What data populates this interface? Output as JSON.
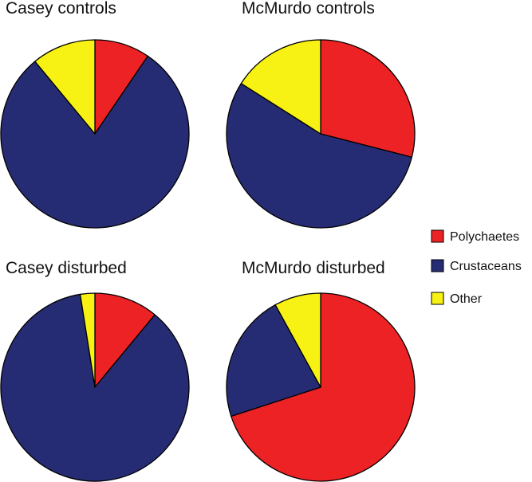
{
  "chart_data": {
    "type": "pie",
    "categories": [
      "Polychaetes",
      "Crustaceans",
      "Other"
    ],
    "colors": {
      "Polychaetes": "#ED2224",
      "Crustaceans": "#262C73",
      "Other": "#F7F213"
    },
    "legend_position": "right",
    "pies": [
      {
        "title": "Casey controls",
        "values": [
          9.5,
          79.5,
          11.0
        ]
      },
      {
        "title": "McMurdo controls",
        "values": [
          29.0,
          55.0,
          16.0
        ]
      },
      {
        "title": "Casey disturbed",
        "values": [
          11.0,
          86.5,
          2.5
        ]
      },
      {
        "title": "McMurdo disturbed",
        "values": [
          70.0,
          22.0,
          8.0
        ]
      }
    ]
  }
}
